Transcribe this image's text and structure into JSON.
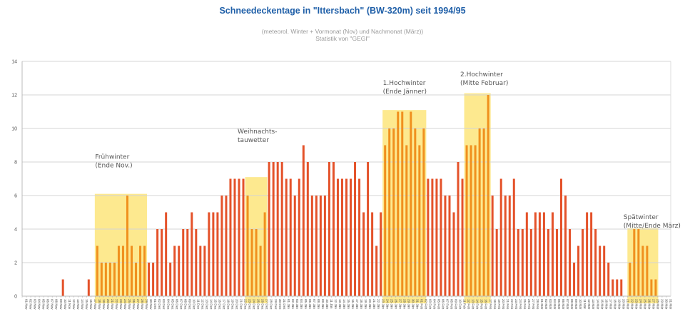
{
  "chart_data": {
    "type": "bar",
    "title": "Schneedeckentage in \"Ittersbach\" (BW-320m) seit 1994/95",
    "subtitle": [
      "(meteorol. Winter + Vormonat (Nov) und Nachmonat (März))",
      "Statistik von \"GEGI\""
    ],
    "xlabel": "",
    "ylabel": "",
    "ylim": [
      0,
      14
    ],
    "yticks": [
      0,
      2,
      4,
      6,
      8,
      10,
      12,
      14
    ],
    "grid": true,
    "months": [
      {
        "abbr": "Nov",
        "days": 30
      },
      {
        "abbr": "Dez",
        "days": 31
      },
      {
        "abbr": "Jän",
        "days": 31
      },
      {
        "abbr": "Feb",
        "days": 28
      },
      {
        "abbr": "Mär",
        "days": 31
      }
    ],
    "values": [
      0,
      0,
      0,
      0,
      0,
      0,
      0,
      0,
      0,
      1,
      0,
      0,
      0,
      0,
      0,
      1,
      0,
      3,
      2,
      2,
      2,
      2,
      3,
      3,
      6,
      3,
      2,
      3,
      3,
      2,
      2,
      4,
      4,
      5,
      2,
      3,
      3,
      4,
      4,
      5,
      4,
      3,
      3,
      5,
      5,
      5,
      6,
      6,
      7,
      7,
      7,
      7,
      6,
      4,
      4,
      3,
      5,
      8,
      8,
      8,
      8,
      7,
      7,
      6,
      7,
      9,
      8,
      6,
      6,
      6,
      6,
      8,
      8,
      7,
      7,
      7,
      7,
      8,
      7,
      5,
      8,
      5,
      3,
      5,
      9,
      10,
      10,
      11,
      11,
      9,
      11,
      10,
      9,
      10,
      7,
      7,
      7,
      7,
      6,
      6,
      5,
      8,
      7,
      9,
      9,
      9,
      10,
      10,
      12,
      6,
      4,
      7,
      6,
      6,
      7,
      4,
      4,
      5,
      4,
      5,
      5,
      5,
      4,
      5,
      4,
      7,
      6,
      4,
      2,
      3,
      4,
      5,
      5,
      4,
      3,
      3,
      2,
      1,
      1,
      1,
      0,
      2,
      4,
      4,
      3,
      3,
      1,
      1,
      0,
      0,
      0
    ],
    "highlights": [
      {
        "name": "Frühwinter",
        "label": [
          "Frühwinter",
          "(Ende Nov.)"
        ],
        "start_index": 17,
        "end_index": 28,
        "level": 6.1
      },
      {
        "name": "Weihnachtstauwetter",
        "label": [
          "Weihnachts-",
          "tauwetter"
        ],
        "start_index": 52,
        "end_index": 56,
        "level": 7.1
      },
      {
        "name": "1.Hochwinter",
        "label": [
          "1.Hochwinter",
          "(Ende Jänner)"
        ],
        "start_index": 84,
        "end_index": 93,
        "level": 11.1
      },
      {
        "name": "2.Hochwinter",
        "label": [
          "2.Hochwinter",
          "(Mitte Februar)"
        ],
        "start_index": 103,
        "end_index": 108,
        "level": 12.1
      },
      {
        "name": "Spätwinter",
        "label": [
          "Spätwinter",
          "(Mitte/Ende März)"
        ],
        "start_index": 141,
        "end_index": 147,
        "level": 4.05
      }
    ],
    "colors": {
      "bar": "#e4522a",
      "bar_highlight": "#f0901e",
      "highlight_fill": "#fde98f",
      "grid": "#d4d4d4",
      "title": "#1f5fa8"
    }
  }
}
